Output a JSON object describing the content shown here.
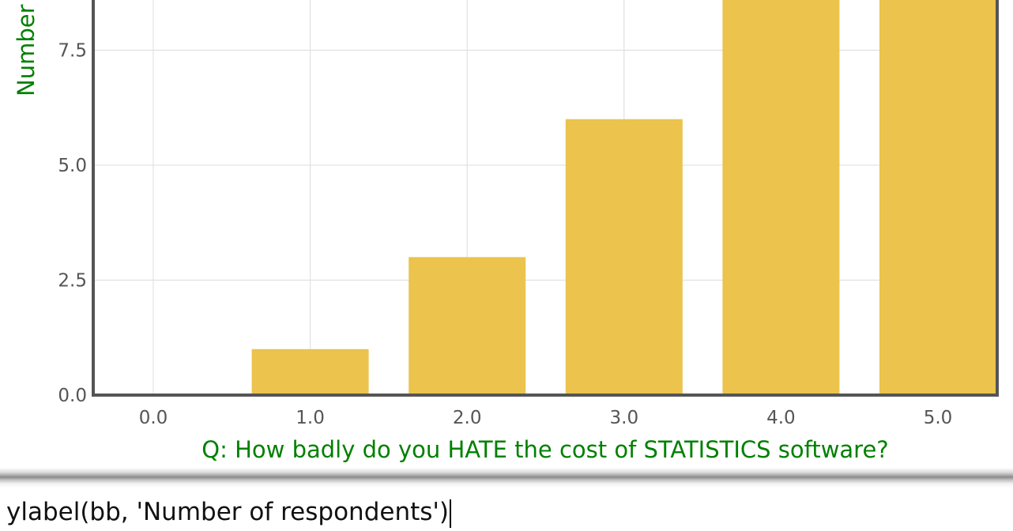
{
  "chart_data": {
    "type": "bar",
    "x": [
      0.0,
      1.0,
      2.0,
      3.0,
      4.0,
      5.0
    ],
    "values": [
      0,
      1,
      3,
      6,
      9,
      9
    ],
    "bar_color": "#ebc34d",
    "title": "",
    "xlabel": "Q: How badly do you HATE the cost of STATISTICS software?",
    "ylabel": "Number",
    "xticks": [
      "0.0",
      "1.0",
      "2.0",
      "3.0",
      "4.0",
      "5.0"
    ],
    "yticks": [
      "0.0",
      "2.5",
      "5.0",
      "7.5"
    ],
    "ytick_values": [
      0,
      2.5,
      5,
      7.5
    ],
    "xlim": [
      -0.5,
      5.5
    ],
    "ylim": [
      0,
      8.5
    ],
    "grid": true,
    "axis_title_color": "#008000"
  },
  "command": {
    "text": "ylabel(bb, 'Number of respondents')"
  }
}
